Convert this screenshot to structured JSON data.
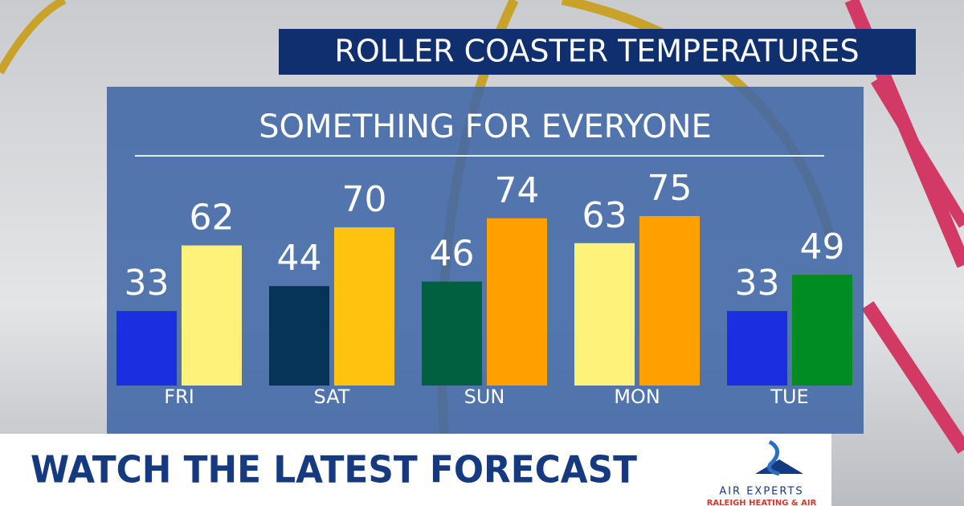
{
  "chart_data": {
    "type": "bar",
    "title": "ROLLER COASTER TEMPERATURES",
    "subtitle": "SOMETHING FOR EVERYONE",
    "categories": [
      "FRI",
      "SAT",
      "SUN",
      "MON",
      "TUE"
    ],
    "series": [
      {
        "colors": [
          "#1c2fe0",
          "#063358",
          "#00603f",
          "#fff27a",
          "#1c2fe0"
        ],
        "values": [
          33,
          44,
          46,
          63,
          33
        ]
      },
      {
        "colors": [
          "#fff27a",
          "#ffc30f",
          "#ff9f00",
          "#ff9f00",
          "#008c22"
        ],
        "values": [
          62,
          70,
          74,
          75,
          49
        ]
      }
    ]
  },
  "banner": "WATCH THE LATEST FORECAST",
  "logo": {
    "name": "AIR EXPERTS",
    "tagline": "RALEIGH HEATING & AIR"
  }
}
